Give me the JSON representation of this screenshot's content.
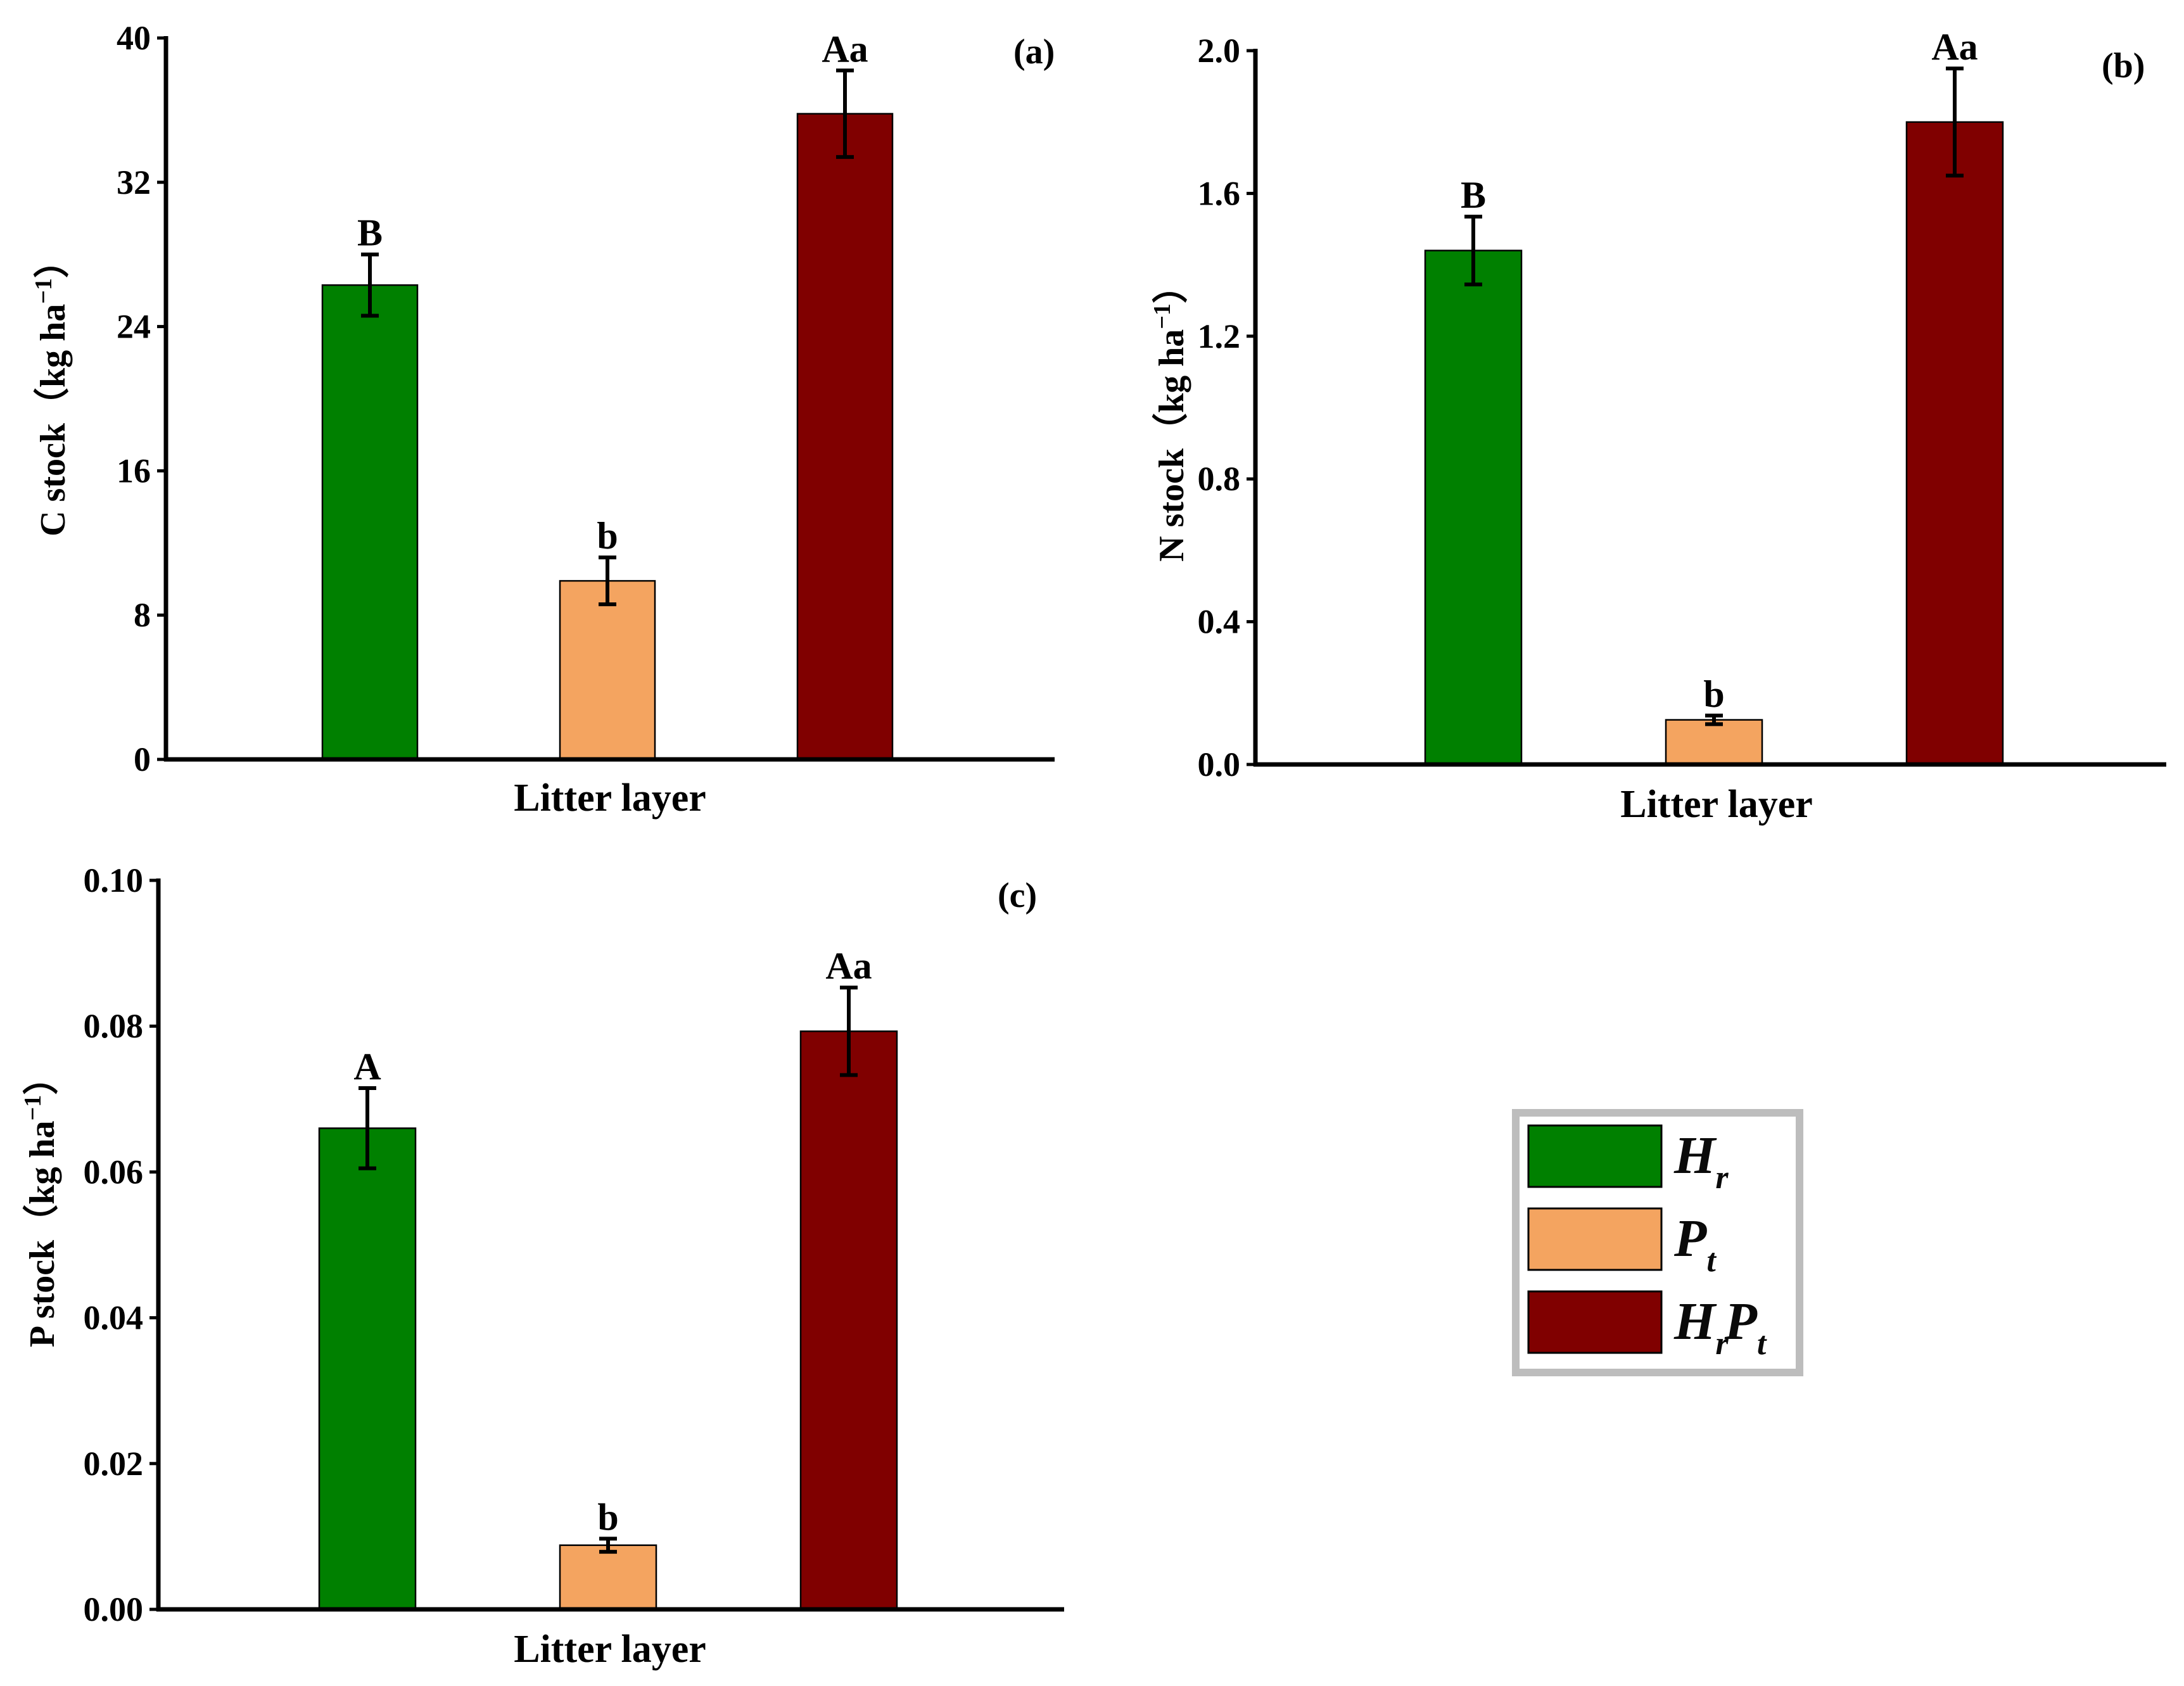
{
  "colors": {
    "Hr": "#008000",
    "Pt": "#F4A460",
    "HrPt": "#800000"
  },
  "legend": {
    "items": [
      {
        "key": "Hr",
        "main": "H",
        "sub": "r"
      },
      {
        "key": "Pt",
        "main": "P",
        "sub": "t"
      },
      {
        "key": "HrPt",
        "main1": "H",
        "sub1": "r",
        "main2": "P",
        "sub2": "t"
      }
    ]
  },
  "chart_data": [
    {
      "type": "bar",
      "panel_label": "(a)",
      "title": "",
      "xlabel": "Litter layer",
      "ylabel_main": "C stock（kg ha",
      "ylabel_sup": "−1",
      "ylabel_close": "）",
      "ylim": [
        0,
        40
      ],
      "yticks": [
        0,
        8,
        16,
        24,
        32,
        40
      ],
      "ytick_labels": [
        "0",
        "8",
        "16",
        "24",
        "32",
        "40"
      ],
      "categories": [
        "Hr",
        "Pt",
        "HrPt"
      ],
      "values": [
        26.3,
        9.9,
        35.8
      ],
      "errors": [
        1.7,
        1.3,
        2.4
      ],
      "sig_labels": [
        "B",
        "b",
        "Aa"
      ]
    },
    {
      "type": "bar",
      "panel_label": "(b)",
      "title": "",
      "xlabel": "Litter layer",
      "ylabel_main": "N stock（kg ha",
      "ylabel_sup": "−1",
      "ylabel_close": "）",
      "ylim": [
        0,
        2.0
      ],
      "yticks": [
        0,
        0.4,
        0.8,
        1.2,
        1.6,
        2.0
      ],
      "ytick_labels": [
        "0.0",
        "0.4",
        "0.8",
        "1.2",
        "1.6",
        "2.0"
      ],
      "categories": [
        "Hr",
        "Pt",
        "HrPt"
      ],
      "values": [
        1.44,
        0.125,
        1.8
      ],
      "errors": [
        0.095,
        0.012,
        0.15
      ],
      "sig_labels": [
        "B",
        "b",
        "Aa"
      ]
    },
    {
      "type": "bar",
      "panel_label": "(c)",
      "title": "",
      "xlabel": "Litter layer",
      "ylabel_main": "P stock（kg ha",
      "ylabel_sup": "−1",
      "ylabel_close": "）",
      "ylim": [
        0,
        0.1
      ],
      "yticks": [
        0,
        0.02,
        0.04,
        0.06,
        0.08,
        0.1
      ],
      "ytick_labels": [
        "0.00",
        "0.02",
        "0.04",
        "0.06",
        "0.08",
        "0.10"
      ],
      "categories": [
        "Hr",
        "Pt",
        "HrPt"
      ],
      "values": [
        0.066,
        0.0088,
        0.0793
      ],
      "errors": [
        0.0055,
        0.0009,
        0.006
      ],
      "sig_labels": [
        "A",
        "b",
        "Aa"
      ]
    }
  ]
}
